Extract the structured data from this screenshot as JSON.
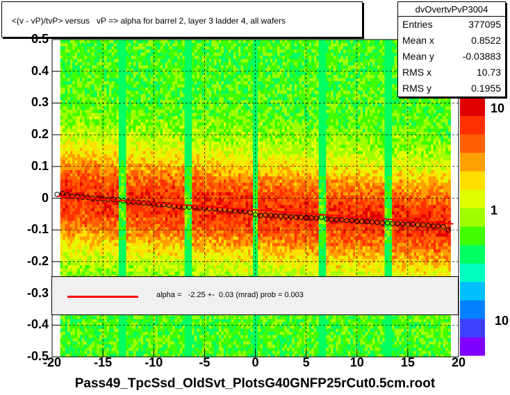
{
  "title": "<(v - vP)/tvP> versus   vP => alpha for barrel 2, layer 3 ladder 4, all wafers",
  "stats": {
    "name": "dvOvertvPvP3004",
    "rows": [
      {
        "label": "Entries",
        "value": "377095"
      },
      {
        "label": "Mean x",
        "value": "0.8522"
      },
      {
        "label": "Mean y",
        "value": "-0.03883"
      },
      {
        "label": "RMS x",
        "value": "10.73"
      },
      {
        "label": "RMS y",
        "value": "0.1955"
      }
    ]
  },
  "legend": {
    "text": "alpha =   -2.25 +-  0.03 (mrad) prob = 0.003"
  },
  "xlabel": "Pass49_TpcSsd_OldSvt_PlotsG40GNFP25rCut0.5cm.root",
  "colors": {
    "fit": "#ff0000",
    "frame": "#000000",
    "grid": "#000000"
  },
  "chart_data": {
    "type": "heatmap",
    "xlim": [
      -20,
      20
    ],
    "ylim": [
      -0.5,
      0.5
    ],
    "x_ticks": [
      "-20",
      "-15",
      "-10",
      "-5",
      "0",
      "5",
      "10",
      "15",
      "20"
    ],
    "y_ticks": [
      "-0.5",
      "-0.4",
      "-0.3",
      "-0.2",
      "-0.1",
      "0",
      "0.1",
      "0.2",
      "0.3",
      "0.4",
      "0.5"
    ],
    "z_ticks": [
      "10",
      "1",
      "10"
    ],
    "z_scale": "log",
    "grid": true,
    "fit": {
      "slope": -0.00225,
      "intercept": -0.037,
      "x_range": [
        -19.5,
        19.5
      ]
    },
    "profile_points": [
      [
        -19.5,
        0.012
      ],
      [
        -19.0,
        0.015
      ],
      [
        -18.5,
        0.01
      ],
      [
        -18.0,
        0.006
      ],
      [
        -17.5,
        0.005
      ],
      [
        -17.0,
        0.003
      ],
      [
        -16.5,
        0.003
      ],
      [
        -16.0,
        -0.001
      ],
      [
        -15.5,
        -0.001
      ],
      [
        -15.0,
        -0.002
      ],
      [
        -14.5,
        -0.004
      ],
      [
        -14.0,
        -0.004
      ],
      [
        -13.5,
        -0.005
      ],
      [
        -13.0,
        -0.008
      ],
      [
        -12.5,
        -0.012
      ],
      [
        -12.0,
        -0.012
      ],
      [
        -11.5,
        -0.013
      ],
      [
        -11.0,
        -0.015
      ],
      [
        -10.5,
        -0.016
      ],
      [
        -10.0,
        -0.018
      ],
      [
        -9.5,
        -0.02
      ],
      [
        -9.0,
        -0.02
      ],
      [
        -8.5,
        -0.022
      ],
      [
        -8.0,
        -0.025
      ],
      [
        -7.5,
        -0.026
      ],
      [
        -7.0,
        -0.028
      ],
      [
        -6.5,
        -0.028
      ],
      [
        -6.0,
        -0.028
      ],
      [
        -5.5,
        -0.03
      ],
      [
        -5.0,
        -0.031
      ],
      [
        -4.5,
        -0.033
      ],
      [
        -4.0,
        -0.033
      ],
      [
        -3.5,
        -0.035
      ],
      [
        -3.0,
        -0.036
      ],
      [
        -2.5,
        -0.038
      ],
      [
        -2.0,
        -0.04
      ],
      [
        -1.5,
        -0.04
      ],
      [
        -1.0,
        -0.042
      ],
      [
        -0.5,
        -0.045
      ],
      [
        0.0,
        -0.052
      ],
      [
        0.5,
        -0.055
      ],
      [
        1.0,
        -0.053
      ],
      [
        1.5,
        -0.054
      ],
      [
        2.0,
        -0.056
      ],
      [
        2.5,
        -0.057
      ],
      [
        3.0,
        -0.058
      ],
      [
        3.5,
        -0.058
      ],
      [
        4.0,
        -0.06
      ],
      [
        4.5,
        -0.06
      ],
      [
        5.0,
        -0.062
      ],
      [
        5.5,
        -0.062
      ],
      [
        6.0,
        -0.063
      ],
      [
        6.5,
        -0.06
      ],
      [
        7.0,
        -0.066
      ],
      [
        7.5,
        -0.067
      ],
      [
        8.0,
        -0.068
      ],
      [
        8.5,
        -0.068
      ],
      [
        9.0,
        -0.07
      ],
      [
        9.5,
        -0.07
      ],
      [
        10.0,
        -0.072
      ],
      [
        10.5,
        -0.073
      ],
      [
        11.0,
        -0.074
      ],
      [
        11.5,
        -0.075
      ],
      [
        12.0,
        -0.076
      ],
      [
        12.5,
        -0.078
      ],
      [
        13.0,
        -0.078
      ],
      [
        13.5,
        -0.08
      ],
      [
        14.0,
        -0.08
      ],
      [
        14.5,
        -0.082
      ],
      [
        15.0,
        -0.082
      ],
      [
        15.5,
        -0.083
      ],
      [
        16.0,
        -0.084
      ],
      [
        16.5,
        -0.084
      ],
      [
        17.0,
        -0.086
      ],
      [
        17.5,
        -0.088
      ],
      [
        18.0,
        -0.088
      ],
      [
        18.5,
        -0.09
      ],
      [
        19.0,
        -0.1
      ]
    ],
    "gap_columns": [
      -13,
      -6.5,
      0,
      6.5,
      13
    ]
  }
}
